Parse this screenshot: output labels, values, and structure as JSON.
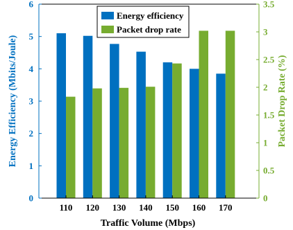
{
  "chart_data": {
    "type": "bar",
    "categories": [
      "110",
      "120",
      "130",
      "140",
      "150",
      "160",
      "170"
    ],
    "xlabel": "Traffic Volume (Mbps)",
    "series": [
      {
        "name": "Energy efficiency",
        "axis": "left",
        "color": "#0070c0",
        "values": [
          5.1,
          5.02,
          4.77,
          4.53,
          4.2,
          4.0,
          3.85
        ]
      },
      {
        "name": "Packet drop rate",
        "axis": "right",
        "color": "#77ac30",
        "values": [
          1.83,
          1.98,
          1.99,
          2.01,
          2.43,
          3.02,
          3.02
        ]
      }
    ],
    "y_left": {
      "label": "Energy Efficiency (Mbits/Joule)",
      "ylim": [
        0,
        6
      ],
      "ticks": [
        "0",
        "1",
        "2",
        "3",
        "4",
        "5",
        "6"
      ],
      "color": "#0070c0"
    },
    "y_right": {
      "label": "Packet Drop Rate (%)",
      "ylim": [
        0,
        3.5
      ],
      "ticks": [
        "0",
        "0.5",
        "1",
        "1.5",
        "2",
        "2.5",
        "3",
        "3.5"
      ],
      "color": "#77ac30"
    },
    "legend_position": "top-center",
    "grid": false
  }
}
